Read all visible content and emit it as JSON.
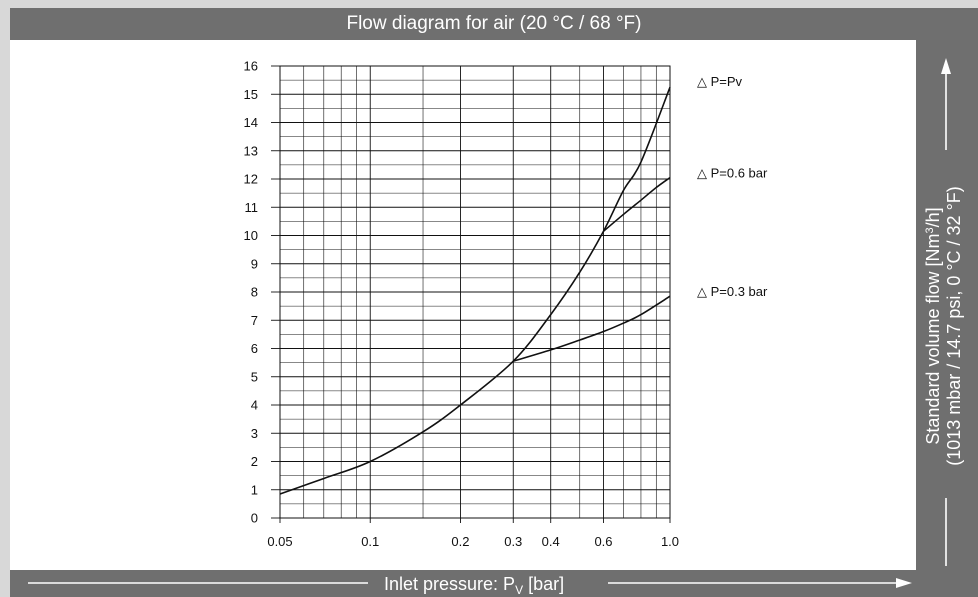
{
  "colors": {
    "band": "#6f6f6f",
    "border": "#d8d8d8",
    "plot_bg": "#ffffff",
    "ink": "#111111",
    "band_text": "#ffffff"
  },
  "chart_data": {
    "type": "line",
    "title": "Flow diagram for air (20 °C / 68 °F)",
    "xlabel": {
      "main": "Inlet pressure: P",
      "sub": "V",
      "unit": " [bar]"
    },
    "ylabel": {
      "line1_main": "Standard volume flow [Nm",
      "line1_sup": "3",
      "line1_end": "/h]",
      "line2": "(1013 mbar / 14.7 psi, 0 °C / 32 °F)"
    },
    "x_scale": "log",
    "xlim": [
      0.05,
      1.0
    ],
    "ylim": [
      0,
      16
    ],
    "x_ticks": [
      0.05,
      0.1,
      0.2,
      0.3,
      0.4,
      0.6,
      1.0
    ],
    "x_tick_labels": [
      "0.05",
      "0.1",
      "0.2",
      "0.3",
      "0.4",
      "0.6",
      "1.0"
    ],
    "y_ticks": [
      0,
      1,
      2,
      3,
      4,
      5,
      6,
      7,
      8,
      9,
      10,
      11,
      12,
      13,
      14,
      15,
      16
    ],
    "y_tick_labels": [
      "0",
      "1",
      "2",
      "3",
      "4",
      "5",
      "6",
      "7",
      "8",
      "9",
      "10",
      "11",
      "12",
      "13",
      "14",
      "15",
      "16"
    ],
    "grid": true,
    "legend_position": "right",
    "series": [
      {
        "name": "△ P=Pv",
        "x": [
          0.05,
          0.07,
          0.1,
          0.15,
          0.2,
          0.3,
          0.4,
          0.5,
          0.6,
          0.7,
          0.8,
          1.0
        ],
        "y": [
          0.85,
          1.4,
          2.0,
          3.05,
          4.0,
          5.55,
          7.2,
          8.7,
          10.15,
          11.6,
          12.6,
          15.25
        ]
      },
      {
        "name": "△ P=0.6 bar",
        "x": [
          0.6,
          0.7,
          0.8,
          0.9,
          1.0
        ],
        "y": [
          10.15,
          10.75,
          11.25,
          11.7,
          12.05
        ]
      },
      {
        "name": "△ P=0.3 bar",
        "x": [
          0.3,
          0.4,
          0.5,
          0.6,
          0.7,
          0.8,
          1.0
        ],
        "y": [
          5.55,
          5.95,
          6.3,
          6.6,
          6.9,
          7.2,
          7.85
        ]
      }
    ]
  }
}
